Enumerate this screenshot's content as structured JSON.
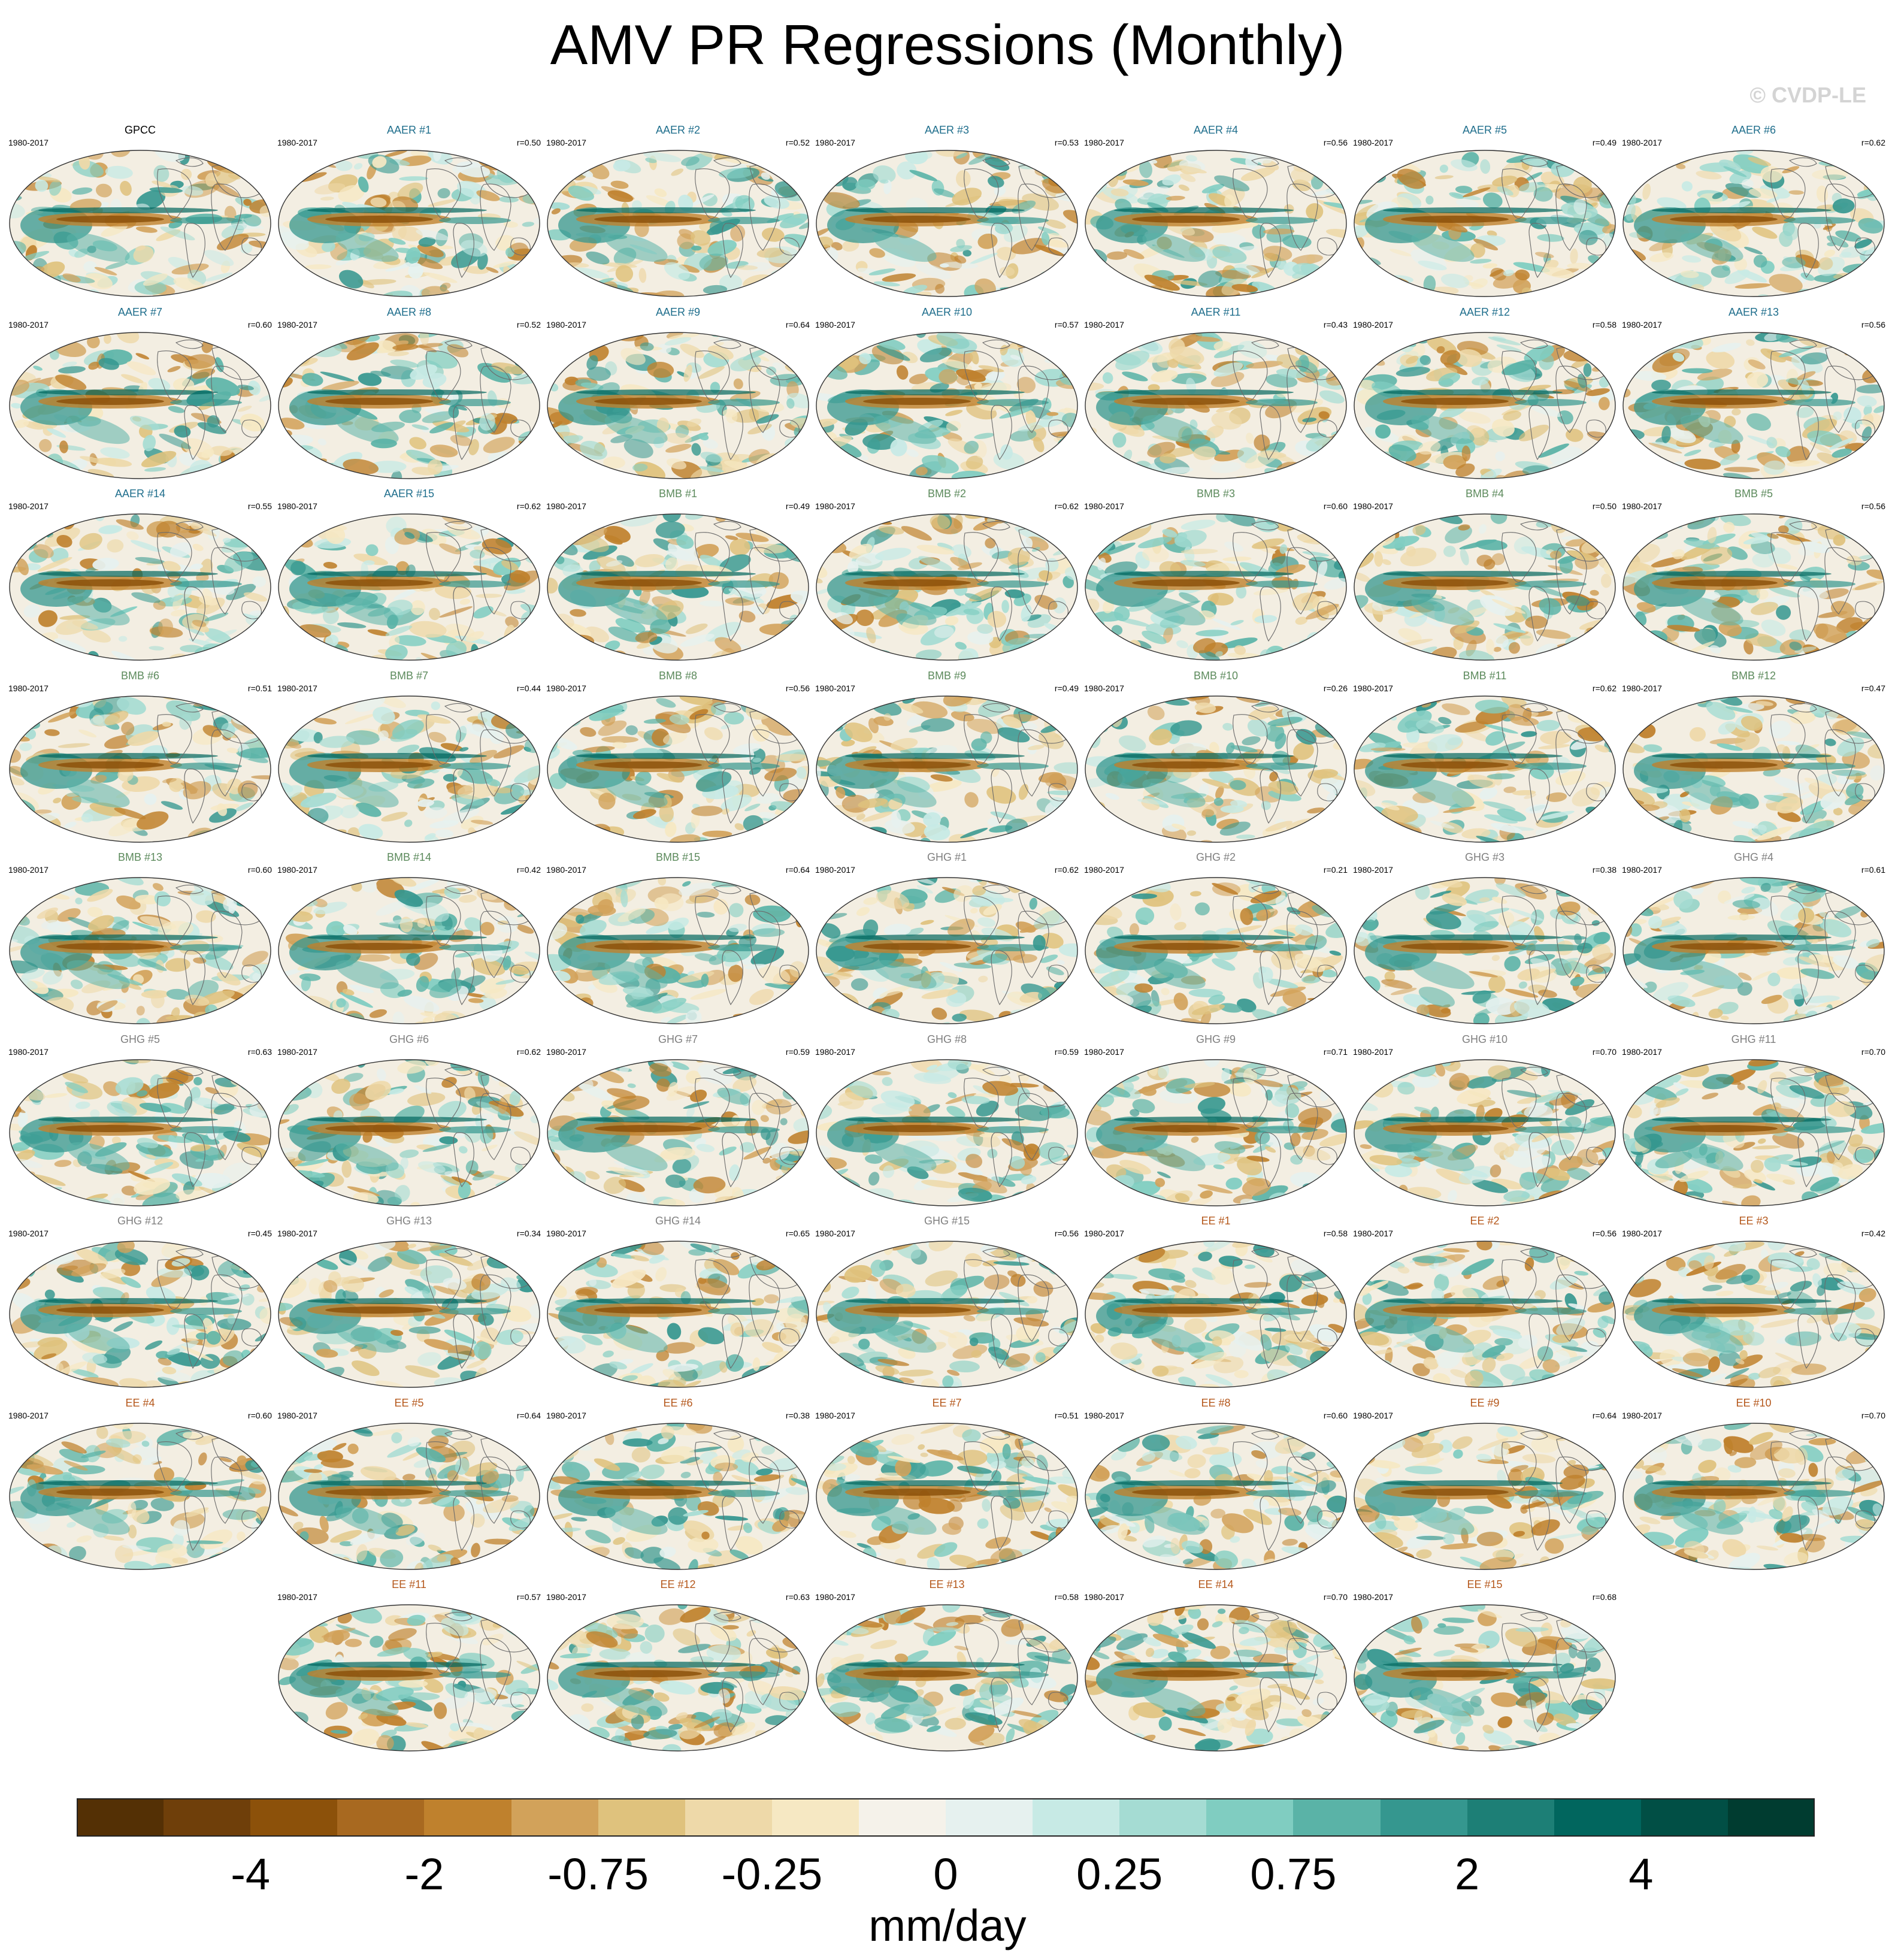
{
  "title": "AMV PR Regressions (Monthly)",
  "watermark": "© CVDP-LE",
  "chart_data": {
    "type": "heatmap",
    "title": "AMV PR Regressions (Monthly)",
    "colorbar": {
      "unit_label": "mm/day",
      "tick_labels": [
        "-4",
        "-2",
        "-0.75",
        "-0.25",
        "0",
        "0.25",
        "0.75",
        "2",
        "4"
      ],
      "colors": [
        "#543005",
        "#6f3f0a",
        "#8c510a",
        "#a86920",
        "#bf812d",
        "#d2a25a",
        "#dfc27d",
        "#eed9a9",
        "#f6e8c3",
        "#f5f2ea",
        "#e6f1ef",
        "#c7eae5",
        "#a5dcd3",
        "#80cdc1",
        "#5ab3a7",
        "#35978f",
        "#1d7f76",
        "#01665e",
        "#014f45",
        "#003c30"
      ]
    },
    "group_colors": {
      "GPCC": "#000000",
      "AAER": "#1f6e8c",
      "BMB": "#5c8a5c",
      "GHG": "#7f7f7f",
      "EE": "#b5581c"
    },
    "panels": [
      {
        "label": "GPCC",
        "group": "GPCC",
        "years": "1980-2017",
        "corr": ""
      },
      {
        "label": "AAER #1",
        "group": "AAER",
        "years": "1980-2017",
        "corr": "r=0.50"
      },
      {
        "label": "AAER #2",
        "group": "AAER",
        "years": "1980-2017",
        "corr": "r=0.52"
      },
      {
        "label": "AAER #3",
        "group": "AAER",
        "years": "1980-2017",
        "corr": "r=0.53"
      },
      {
        "label": "AAER #4",
        "group": "AAER",
        "years": "1980-2017",
        "corr": "r=0.56"
      },
      {
        "label": "AAER #5",
        "group": "AAER",
        "years": "1980-2017",
        "corr": "r=0.49"
      },
      {
        "label": "AAER #6",
        "group": "AAER",
        "years": "1980-2017",
        "corr": "r=0.62"
      },
      {
        "label": "AAER #7",
        "group": "AAER",
        "years": "1980-2017",
        "corr": "r=0.60"
      },
      {
        "label": "AAER #8",
        "group": "AAER",
        "years": "1980-2017",
        "corr": "r=0.52"
      },
      {
        "label": "AAER #9",
        "group": "AAER",
        "years": "1980-2017",
        "corr": "r=0.64"
      },
      {
        "label": "AAER #10",
        "group": "AAER",
        "years": "1980-2017",
        "corr": "r=0.57"
      },
      {
        "label": "AAER #11",
        "group": "AAER",
        "years": "1980-2017",
        "corr": "r=0.43"
      },
      {
        "label": "AAER #12",
        "group": "AAER",
        "years": "1980-2017",
        "corr": "r=0.58"
      },
      {
        "label": "AAER #13",
        "group": "AAER",
        "years": "1980-2017",
        "corr": "r=0.56"
      },
      {
        "label": "AAER #14",
        "group": "AAER",
        "years": "1980-2017",
        "corr": "r=0.55"
      },
      {
        "label": "AAER #15",
        "group": "AAER",
        "years": "1980-2017",
        "corr": "r=0.62"
      },
      {
        "label": "BMB #1",
        "group": "BMB",
        "years": "1980-2017",
        "corr": "r=0.49"
      },
      {
        "label": "BMB #2",
        "group": "BMB",
        "years": "1980-2017",
        "corr": "r=0.62"
      },
      {
        "label": "BMB #3",
        "group": "BMB",
        "years": "1980-2017",
        "corr": "r=0.60"
      },
      {
        "label": "BMB #4",
        "group": "BMB",
        "years": "1980-2017",
        "corr": "r=0.50"
      },
      {
        "label": "BMB #5",
        "group": "BMB",
        "years": "1980-2017",
        "corr": "r=0.56"
      },
      {
        "label": "BMB #6",
        "group": "BMB",
        "years": "1980-2017",
        "corr": "r=0.51"
      },
      {
        "label": "BMB #7",
        "group": "BMB",
        "years": "1980-2017",
        "corr": "r=0.44"
      },
      {
        "label": "BMB #8",
        "group": "BMB",
        "years": "1980-2017",
        "corr": "r=0.56"
      },
      {
        "label": "BMB #9",
        "group": "BMB",
        "years": "1980-2017",
        "corr": "r=0.49"
      },
      {
        "label": "BMB #10",
        "group": "BMB",
        "years": "1980-2017",
        "corr": "r=0.26"
      },
      {
        "label": "BMB #11",
        "group": "BMB",
        "years": "1980-2017",
        "corr": "r=0.62"
      },
      {
        "label": "BMB #12",
        "group": "BMB",
        "years": "1980-2017",
        "corr": "r=0.47"
      },
      {
        "label": "BMB #13",
        "group": "BMB",
        "years": "1980-2017",
        "corr": "r=0.60"
      },
      {
        "label": "BMB #14",
        "group": "BMB",
        "years": "1980-2017",
        "corr": "r=0.42"
      },
      {
        "label": "BMB #15",
        "group": "BMB",
        "years": "1980-2017",
        "corr": "r=0.64"
      },
      {
        "label": "GHG #1",
        "group": "GHG",
        "years": "1980-2017",
        "corr": "r=0.62"
      },
      {
        "label": "GHG #2",
        "group": "GHG",
        "years": "1980-2017",
        "corr": "r=0.21"
      },
      {
        "label": "GHG #3",
        "group": "GHG",
        "years": "1980-2017",
        "corr": "r=0.38"
      },
      {
        "label": "GHG #4",
        "group": "GHG",
        "years": "1980-2017",
        "corr": "r=0.61"
      },
      {
        "label": "GHG #5",
        "group": "GHG",
        "years": "1980-2017",
        "corr": "r=0.63"
      },
      {
        "label": "GHG #6",
        "group": "GHG",
        "years": "1980-2017",
        "corr": "r=0.62"
      },
      {
        "label": "GHG #7",
        "group": "GHG",
        "years": "1980-2017",
        "corr": "r=0.59"
      },
      {
        "label": "GHG #8",
        "group": "GHG",
        "years": "1980-2017",
        "corr": "r=0.59"
      },
      {
        "label": "GHG #9",
        "group": "GHG",
        "years": "1980-2017",
        "corr": "r=0.71"
      },
      {
        "label": "GHG #10",
        "group": "GHG",
        "years": "1980-2017",
        "corr": "r=0.70"
      },
      {
        "label": "GHG #11",
        "group": "GHG",
        "years": "1980-2017",
        "corr": "r=0.70"
      },
      {
        "label": "GHG #12",
        "group": "GHG",
        "years": "1980-2017",
        "corr": "r=0.45"
      },
      {
        "label": "GHG #13",
        "group": "GHG",
        "years": "1980-2017",
        "corr": "r=0.34"
      },
      {
        "label": "GHG #14",
        "group": "GHG",
        "years": "1980-2017",
        "corr": "r=0.65"
      },
      {
        "label": "GHG #15",
        "group": "GHG",
        "years": "1980-2017",
        "corr": "r=0.56"
      },
      {
        "label": "EE #1",
        "group": "EE",
        "years": "1980-2017",
        "corr": "r=0.58"
      },
      {
        "label": "EE #2",
        "group": "EE",
        "years": "1980-2017",
        "corr": "r=0.56"
      },
      {
        "label": "EE #3",
        "group": "EE",
        "years": "1980-2017",
        "corr": "r=0.42"
      },
      {
        "label": "EE #4",
        "group": "EE",
        "years": "1980-2017",
        "corr": "r=0.60"
      },
      {
        "label": "EE #5",
        "group": "EE",
        "years": "1980-2017",
        "corr": "r=0.64"
      },
      {
        "label": "EE #6",
        "group": "EE",
        "years": "1980-2017",
        "corr": "r=0.38"
      },
      {
        "label": "EE #7",
        "group": "EE",
        "years": "1980-2017",
        "corr": "r=0.51"
      },
      {
        "label": "EE #8",
        "group": "EE",
        "years": "1980-2017",
        "corr": "r=0.60"
      },
      {
        "label": "EE #9",
        "group": "EE",
        "years": "1980-2017",
        "corr": "r=0.64"
      },
      {
        "label": "EE #10",
        "group": "EE",
        "years": "1980-2017",
        "corr": "r=0.70"
      },
      {
        "label": "EE #11",
        "group": "EE",
        "years": "1980-2017",
        "corr": "r=0.57"
      },
      {
        "label": "EE #12",
        "group": "EE",
        "years": "1980-2017",
        "corr": "r=0.63"
      },
      {
        "label": "EE #13",
        "group": "EE",
        "years": "1980-2017",
        "corr": "r=0.58"
      },
      {
        "label": "EE #14",
        "group": "EE",
        "years": "1980-2017",
        "corr": "r=0.70"
      },
      {
        "label": "EE #15",
        "group": "EE",
        "years": "1980-2017",
        "corr": "r=0.68"
      }
    ]
  }
}
